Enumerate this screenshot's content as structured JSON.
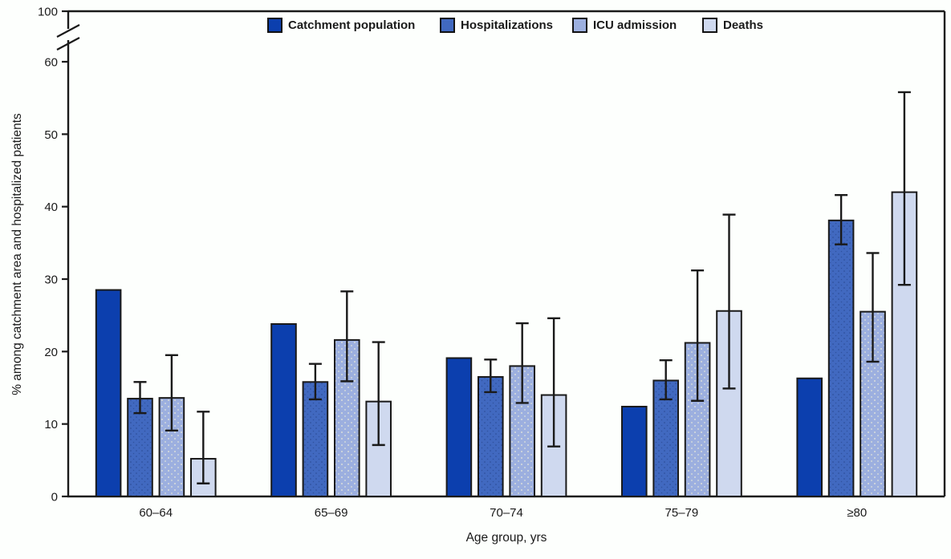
{
  "figure": {
    "y_axis_title": "% among catchment area and hospitalized patients",
    "x_axis_title": "Age group, yrs"
  },
  "colors": {
    "bar_outline": "#1a1a1a",
    "axis": "#1a1a1a",
    "text": "#1a1a1a"
  },
  "legend": [
    {
      "label": "Catchment population",
      "color": "#0c3fae"
    },
    {
      "label": "Hospitalizations",
      "color": "#4169c0"
    },
    {
      "label": "ICU admission",
      "color": "#9cafdf"
    },
    {
      "label": "Deaths",
      "color": "#cfd9ef"
    }
  ],
  "chart_data": {
    "type": "bar",
    "title": "",
    "xlabel": "Age group, yrs",
    "ylabel": "% among catchment area and hospitalized patients",
    "categories": [
      "60–64",
      "65–69",
      "70–74",
      "75–79",
      "≥80"
    ],
    "y_ticks": [
      0,
      10,
      20,
      30,
      40,
      50,
      60,
      100
    ],
    "y_axis_break_between": [
      60,
      100
    ],
    "ylim": [
      0,
      100
    ],
    "grid": false,
    "legend_position": "top-center-inside",
    "error_bars": "95% CI",
    "series": [
      {
        "name": "Catchment population",
        "color": "#0c3fae",
        "texture": "none",
        "values": [
          28.5,
          23.8,
          19.1,
          12.4,
          16.3
        ],
        "error_low": [
          null,
          null,
          null,
          null,
          null
        ],
        "error_high": [
          null,
          null,
          null,
          null,
          null
        ]
      },
      {
        "name": "Hospitalizations",
        "color": "#4169c0",
        "texture": "dark-dots",
        "values": [
          13.5,
          15.8,
          16.5,
          16.0,
          38.1
        ],
        "error_low": [
          11.5,
          13.4,
          14.4,
          13.4,
          34.8
        ],
        "error_high": [
          15.8,
          18.3,
          18.9,
          18.8,
          41.6
        ]
      },
      {
        "name": "ICU admission",
        "color": "#9cafdf",
        "texture": "light-dots",
        "values": [
          13.6,
          21.6,
          18.0,
          21.2,
          25.5
        ],
        "error_low": [
          9.1,
          15.9,
          12.9,
          13.2,
          18.6
        ],
        "error_high": [
          19.5,
          28.3,
          23.9,
          31.2,
          33.6
        ]
      },
      {
        "name": "Deaths",
        "color": "#cfd9ef",
        "texture": "none",
        "values": [
          5.2,
          13.1,
          14.0,
          25.6,
          42.0
        ],
        "error_low": [
          1.8,
          7.1,
          6.9,
          14.9,
          29.2
        ],
        "error_high": [
          11.7,
          21.3,
          24.6,
          38.9,
          55.8
        ]
      }
    ]
  }
}
